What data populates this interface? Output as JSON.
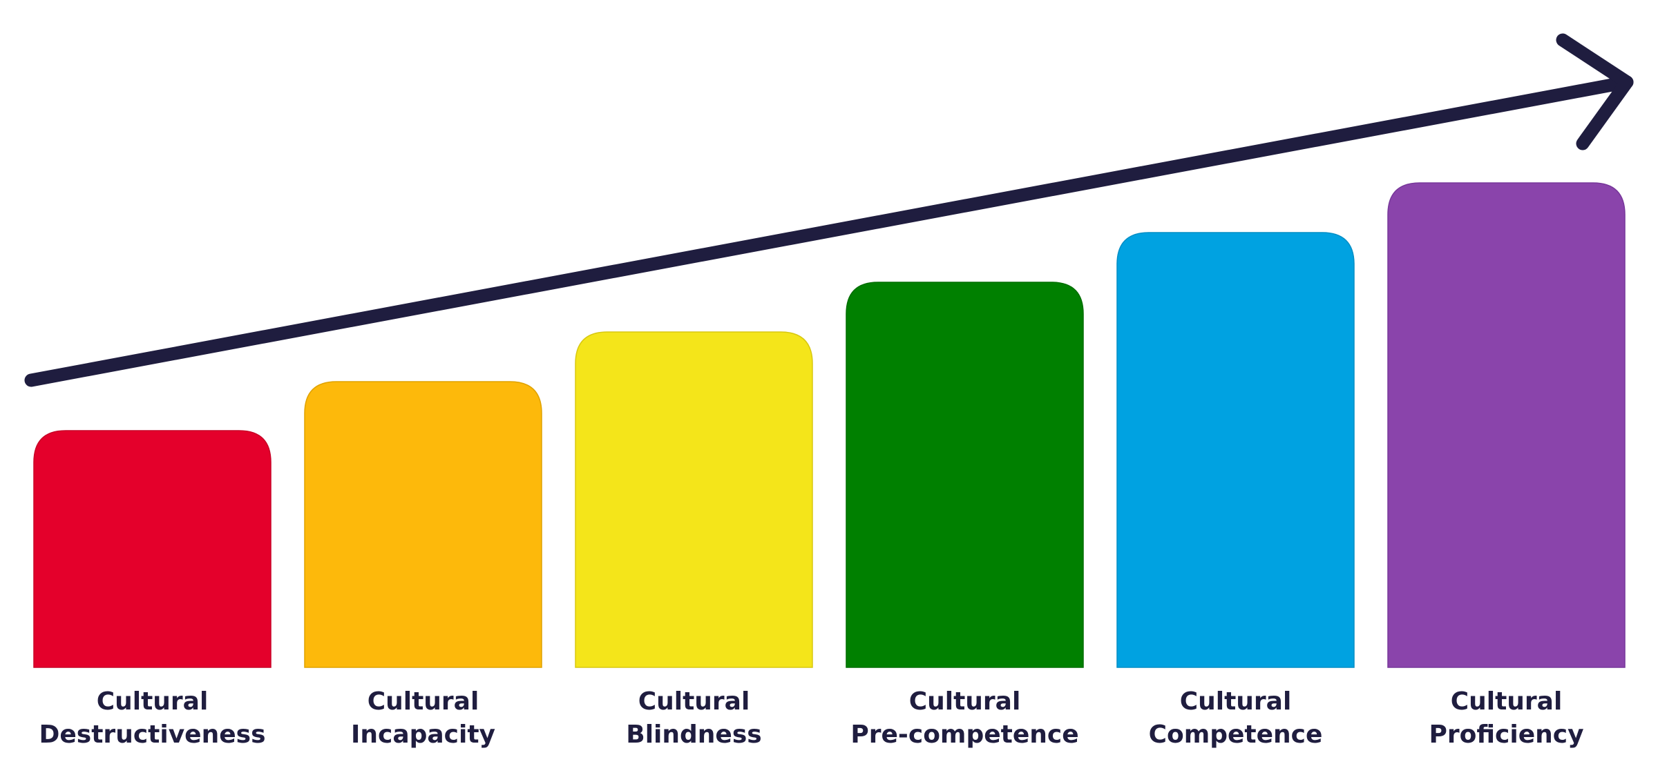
{
  "stages": [
    {
      "lines": [
        "Cultural",
        "Destructiveness"
      ]
    },
    {
      "lines": [
        "Cultural",
        "Incapacity"
      ]
    },
    {
      "lines": [
        "Cultural",
        "Blindness"
      ]
    },
    {
      "lines": [
        "Cultural",
        "Pre-competence"
      ]
    },
    {
      "lines": [
        "Cultural",
        "Competence"
      ]
    },
    {
      "lines": [
        "Cultural",
        "Proficiency"
      ]
    }
  ]
}
